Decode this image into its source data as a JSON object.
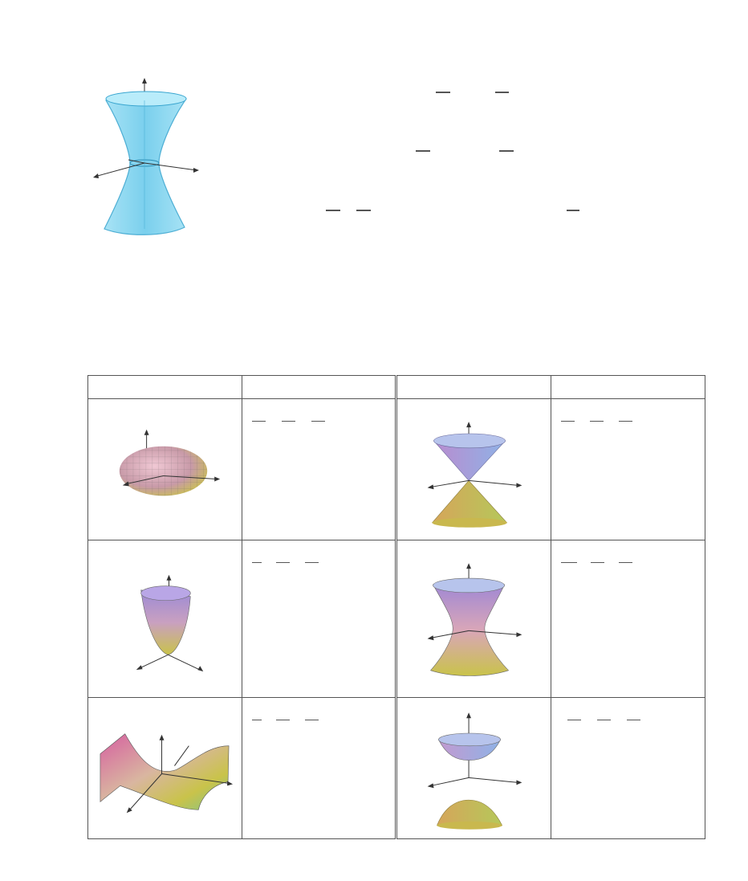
{
  "colors": {
    "hyperboloid_fill": "#7dd3ee",
    "hyperboloid_edge": "#3aa6d0",
    "grid_line": "#555555",
    "surface_top": "#8a7fd6",
    "surface_bottom": "#c9c34a",
    "surface_mid": "#d9a6b8"
  },
  "figure_top": {
    "icon": "hyperboloid-of-one-sheet-icon"
  },
  "table": {
    "columns": [
      "",
      "",
      "",
      ""
    ],
    "rows": [
      {
        "left_icon": "ellipsoid-icon",
        "left_equation": "",
        "right_icon": "cone-icon",
        "right_equation": ""
      },
      {
        "left_icon": "elliptic-paraboloid-icon",
        "left_equation": "",
        "right_icon": "hyperboloid-one-sheet-icon",
        "right_equation": ""
      },
      {
        "left_icon": "hyperbolic-paraboloid-icon",
        "left_equation": "",
        "right_icon": "hyperboloid-two-sheets-icon",
        "right_equation": ""
      }
    ]
  }
}
